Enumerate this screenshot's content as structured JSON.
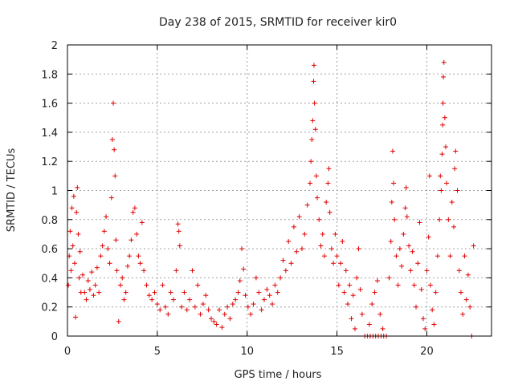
{
  "chart_data": {
    "type": "scatter",
    "title": "Day 238 of 2015, SRMTID for receiver kir0",
    "xlabel": "GPS time / hours",
    "ylabel": "SRMTID / TECUs",
    "xlim": [
      0,
      23.6
    ],
    "ylim": [
      0,
      2
    ],
    "xticks": [
      0,
      5,
      10,
      15,
      20
    ],
    "xtick_labels": [
      "0",
      "5",
      "10",
      "15",
      "20"
    ],
    "yticks": [
      0,
      0.2,
      0.4,
      0.6,
      0.8,
      1,
      1.2,
      1.4,
      1.6,
      1.8,
      2
    ],
    "ytick_labels": [
      "0",
      "0.2",
      "0.4",
      "0.6",
      "0.8",
      "1",
      "1.2",
      "1.4",
      "1.6",
      "1.8",
      "2"
    ],
    "grid": true,
    "marker": "+",
    "color": "#e00000",
    "series": [
      {
        "name": "kir0",
        "points": [
          [
            0.05,
            0.35
          ],
          [
            0.1,
            0.55
          ],
          [
            0.15,
            0.72
          ],
          [
            0.2,
            0.45
          ],
          [
            0.25,
            0.88
          ],
          [
            0.3,
            0.62
          ],
          [
            0.35,
            0.96
          ],
          [
            0.4,
            0.5
          ],
          [
            0.45,
            0.13
          ],
          [
            0.5,
            0.85
          ],
          [
            0.55,
            1.02
          ],
          [
            0.6,
            0.7
          ],
          [
            0.65,
            0.4
          ],
          [
            0.7,
            0.58
          ],
          [
            0.75,
            0.3
          ],
          [
            0.85,
            0.42
          ],
          [
            0.95,
            0.3
          ],
          [
            1.05,
            0.25
          ],
          [
            1.15,
            0.38
          ],
          [
            1.25,
            0.32
          ],
          [
            1.35,
            0.44
          ],
          [
            1.45,
            0.28
          ],
          [
            1.55,
            0.35
          ],
          [
            1.65,
            0.47
          ],
          [
            1.75,
            0.3
          ],
          [
            1.85,
            0.55
          ],
          [
            1.95,
            0.62
          ],
          [
            2.05,
            0.72
          ],
          [
            2.15,
            0.82
          ],
          [
            2.25,
            0.6
          ],
          [
            2.35,
            0.5
          ],
          [
            2.45,
            0.95
          ],
          [
            2.5,
            1.35
          ],
          [
            2.55,
            1.6
          ],
          [
            2.6,
            1.28
          ],
          [
            2.65,
            1.1
          ],
          [
            2.7,
            0.66
          ],
          [
            2.75,
            0.45
          ],
          [
            2.85,
            0.1
          ],
          [
            2.95,
            0.35
          ],
          [
            3.05,
            0.4
          ],
          [
            3.15,
            0.25
          ],
          [
            3.25,
            0.3
          ],
          [
            3.35,
            0.48
          ],
          [
            3.45,
            0.55
          ],
          [
            3.55,
            0.66
          ],
          [
            3.65,
            0.85
          ],
          [
            3.75,
            0.88
          ],
          [
            3.85,
            0.7
          ],
          [
            3.95,
            0.55
          ],
          [
            4.05,
            0.5
          ],
          [
            4.15,
            0.78
          ],
          [
            4.25,
            0.45
          ],
          [
            4.4,
            0.35
          ],
          [
            4.55,
            0.28
          ],
          [
            4.7,
            0.25
          ],
          [
            4.85,
            0.3
          ],
          [
            5.0,
            0.22
          ],
          [
            5.15,
            0.18
          ],
          [
            5.3,
            0.35
          ],
          [
            5.45,
            0.2
          ],
          [
            5.6,
            0.15
          ],
          [
            5.75,
            0.3
          ],
          [
            5.9,
            0.25
          ],
          [
            6.05,
            0.45
          ],
          [
            6.15,
            0.77
          ],
          [
            6.2,
            0.72
          ],
          [
            6.25,
            0.62
          ],
          [
            6.35,
            0.2
          ],
          [
            6.5,
            0.3
          ],
          [
            6.65,
            0.18
          ],
          [
            6.8,
            0.25
          ],
          [
            6.95,
            0.45
          ],
          [
            7.1,
            0.2
          ],
          [
            7.25,
            0.35
          ],
          [
            7.4,
            0.15
          ],
          [
            7.55,
            0.22
          ],
          [
            7.7,
            0.28
          ],
          [
            7.85,
            0.18
          ],
          [
            8.0,
            0.12
          ],
          [
            8.15,
            0.1
          ],
          [
            8.3,
            0.08
          ],
          [
            8.45,
            0.18
          ],
          [
            8.6,
            0.06
          ],
          [
            8.75,
            0.15
          ],
          [
            8.9,
            0.2
          ],
          [
            9.05,
            0.12
          ],
          [
            9.2,
            0.22
          ],
          [
            9.35,
            0.25
          ],
          [
            9.5,
            0.3
          ],
          [
            9.6,
            0.38
          ],
          [
            9.7,
            0.6
          ],
          [
            9.8,
            0.46
          ],
          [
            9.9,
            0.28
          ],
          [
            10.05,
            0.2
          ],
          [
            10.2,
            0.15
          ],
          [
            10.35,
            0.22
          ],
          [
            10.5,
            0.4
          ],
          [
            10.65,
            0.3
          ],
          [
            10.8,
            0.18
          ],
          [
            10.95,
            0.25
          ],
          [
            11.1,
            0.32
          ],
          [
            11.25,
            0.28
          ],
          [
            11.4,
            0.22
          ],
          [
            11.55,
            0.35
          ],
          [
            11.7,
            0.3
          ],
          [
            11.85,
            0.4
          ],
          [
            12.0,
            0.52
          ],
          [
            12.15,
            0.45
          ],
          [
            12.3,
            0.65
          ],
          [
            12.45,
            0.5
          ],
          [
            12.6,
            0.75
          ],
          [
            12.75,
            0.58
          ],
          [
            12.9,
            0.82
          ],
          [
            13.05,
            0.6
          ],
          [
            13.2,
            0.7
          ],
          [
            13.35,
            0.9
          ],
          [
            13.5,
            1.05
          ],
          [
            13.55,
            1.2
          ],
          [
            13.6,
            1.35
          ],
          [
            13.65,
            1.48
          ],
          [
            13.7,
            1.75
          ],
          [
            13.72,
            1.86
          ],
          [
            13.75,
            1.6
          ],
          [
            13.8,
            1.42
          ],
          [
            13.85,
            1.1
          ],
          [
            13.9,
            0.95
          ],
          [
            14.0,
            0.8
          ],
          [
            14.1,
            0.62
          ],
          [
            14.2,
            0.7
          ],
          [
            14.3,
            0.55
          ],
          [
            14.4,
            0.92
          ],
          [
            14.5,
            1.05
          ],
          [
            14.55,
            1.15
          ],
          [
            14.6,
            0.85
          ],
          [
            14.7,
            0.6
          ],
          [
            14.8,
            0.5
          ],
          [
            14.9,
            0.7
          ],
          [
            15.0,
            0.55
          ],
          [
            15.1,
            0.35
          ],
          [
            15.2,
            0.5
          ],
          [
            15.3,
            0.65
          ],
          [
            15.4,
            0.3
          ],
          [
            15.5,
            0.45
          ],
          [
            15.6,
            0.22
          ],
          [
            15.7,
            0.35
          ],
          [
            15.8,
            0.12
          ],
          [
            15.9,
            0.28
          ],
          [
            16.0,
            0.05
          ],
          [
            16.1,
            0.4
          ],
          [
            16.2,
            0.6
          ],
          [
            16.3,
            0.32
          ],
          [
            16.4,
            0.15
          ],
          [
            16.55,
            0.0
          ],
          [
            16.7,
            0.0
          ],
          [
            16.85,
            0.0
          ],
          [
            17.0,
            0.0
          ],
          [
            17.15,
            0.0
          ],
          [
            17.3,
            0.0
          ],
          [
            17.45,
            0.0
          ],
          [
            17.6,
            0.0
          ],
          [
            17.75,
            0.0
          ],
          [
            16.8,
            0.08
          ],
          [
            16.95,
            0.22
          ],
          [
            17.1,
            0.3
          ],
          [
            17.25,
            0.38
          ],
          [
            17.4,
            0.15
          ],
          [
            17.55,
            0.05
          ],
          [
            17.9,
            0.4
          ],
          [
            18.0,
            0.65
          ],
          [
            18.05,
            0.92
          ],
          [
            18.1,
            1.27
          ],
          [
            18.15,
            1.05
          ],
          [
            18.2,
            0.8
          ],
          [
            18.3,
            0.55
          ],
          [
            18.4,
            0.35
          ],
          [
            18.5,
            0.6
          ],
          [
            18.6,
            0.48
          ],
          [
            18.7,
            0.7
          ],
          [
            18.8,
            0.88
          ],
          [
            18.85,
            1.02
          ],
          [
            18.9,
            0.82
          ],
          [
            19.0,
            0.62
          ],
          [
            19.1,
            0.45
          ],
          [
            19.2,
            0.58
          ],
          [
            19.3,
            0.35
          ],
          [
            19.4,
            0.2
          ],
          [
            19.5,
            0.5
          ],
          [
            19.6,
            0.78
          ],
          [
            19.7,
            0.32
          ],
          [
            19.8,
            0.12
          ],
          [
            19.9,
            0.05
          ],
          [
            20.0,
            0.45
          ],
          [
            20.1,
            0.68
          ],
          [
            20.15,
            1.1
          ],
          [
            20.2,
            0.35
          ],
          [
            20.3,
            0.18
          ],
          [
            20.4,
            0.08
          ],
          [
            20.5,
            0.3
          ],
          [
            20.6,
            0.55
          ],
          [
            20.7,
            0.8
          ],
          [
            20.75,
            1.1
          ],
          [
            20.8,
            1.0
          ],
          [
            20.85,
            1.25
          ],
          [
            20.88,
            1.45
          ],
          [
            20.9,
            1.6
          ],
          [
            20.92,
            1.78
          ],
          [
            20.95,
            1.88
          ],
          [
            21.0,
            1.5
          ],
          [
            21.05,
            1.3
          ],
          [
            21.1,
            1.05
          ],
          [
            21.2,
            0.8
          ],
          [
            21.3,
            0.55
          ],
          [
            21.4,
            0.92
          ],
          [
            21.5,
            0.75
          ],
          [
            21.55,
            1.15
          ],
          [
            21.6,
            1.27
          ],
          [
            21.7,
            1.0
          ],
          [
            21.8,
            0.45
          ],
          [
            21.9,
            0.3
          ],
          [
            22.0,
            0.15
          ],
          [
            22.1,
            0.55
          ],
          [
            22.2,
            0.25
          ],
          [
            22.3,
            0.42
          ],
          [
            22.4,
            0.2
          ],
          [
            22.5,
            0.0
          ],
          [
            22.6,
            0.62
          ]
        ]
      }
    ]
  }
}
